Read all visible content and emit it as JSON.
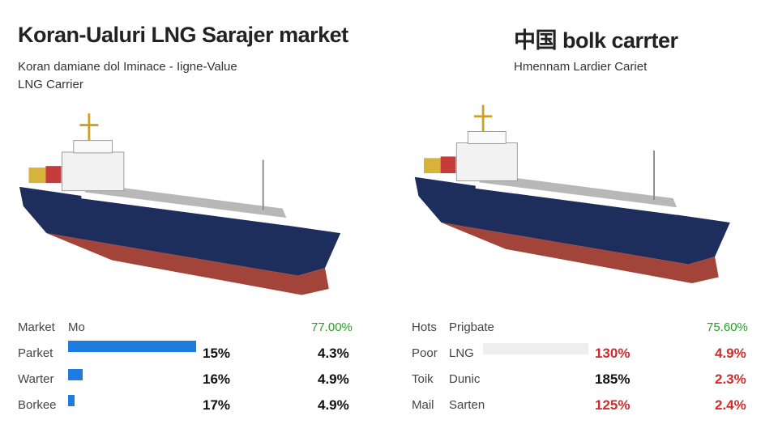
{
  "left": {
    "title": "Koran-Ualuri LNG Sarajer market",
    "subtitle": "Koran damiane dol Iminace - Iigne-Value",
    "caption": "LNG Carrier",
    "header": [
      "Market",
      "Mo",
      "77.00%"
    ],
    "rows": [
      [
        "Parket",
        "15%",
        "4.3%"
      ],
      [
        "Warter",
        "16%",
        "4.9%"
      ],
      [
        "Borkee",
        "17%",
        "4.9%"
      ]
    ]
  },
  "right": {
    "title": "中国 bolk carrter",
    "subtitle": "Hmennam Lardier Cariet",
    "header": [
      "Hots",
      "Prigbate",
      "75.60%"
    ],
    "rows": [
      [
        "Poor",
        "LNG",
        "130%",
        "4.9%"
      ],
      [
        "Toik",
        "Dunic",
        "185%",
        "2.3%"
      ],
      [
        "Mail",
        "Sarten",
        "125%",
        "2.4%"
      ]
    ]
  }
}
